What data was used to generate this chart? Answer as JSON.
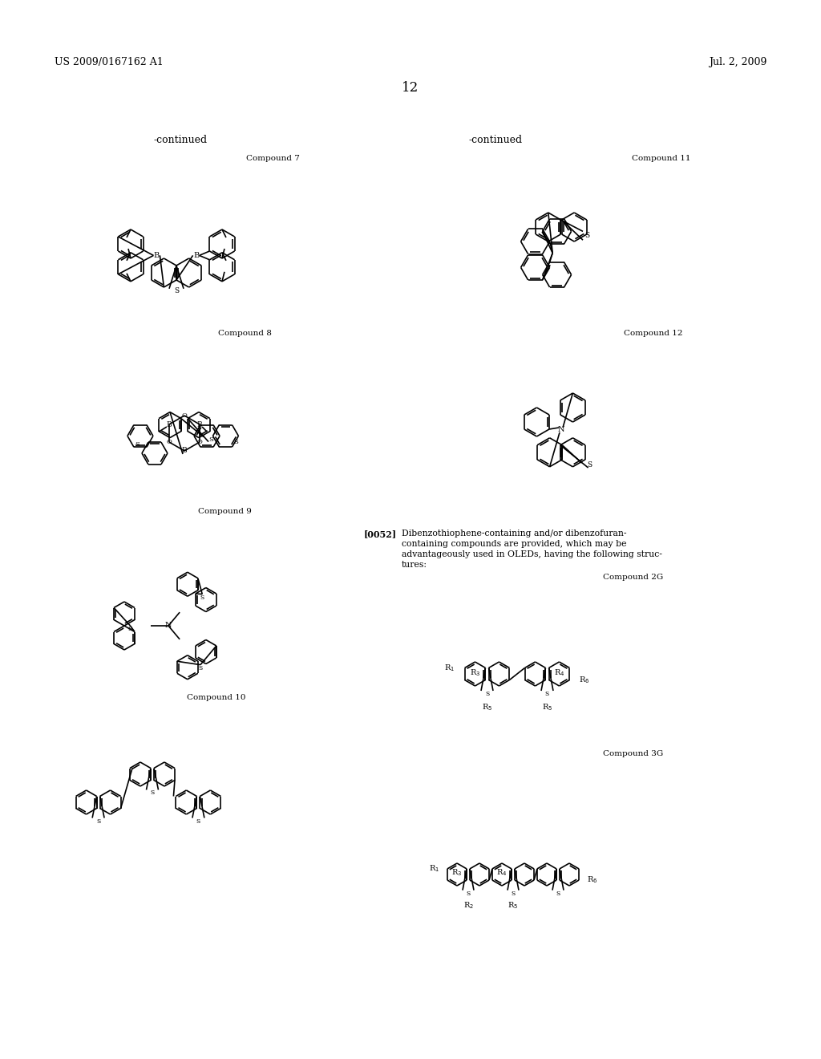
{
  "background_color": "#ffffff",
  "page_number": "12",
  "header_left": "US 2009/0167162 A1",
  "header_right": "Jul. 2, 2009",
  "continued_left": "-continued",
  "continued_right": "-continued",
  "compound_labels": [
    "Compound 7",
    "Compound 8",
    "Compound 9",
    "Compound 10",
    "Compound 11",
    "Compound 12",
    "Compound 2G",
    "Compound 3G"
  ],
  "paragraph_label": "[0052]",
  "paragraph_text": "Dibenzothiophene-containing and/or dibenzofuran-containing compounds are provided, which may be advantageously used in OLEDs, having the following structures:",
  "font_size_header": 9,
  "font_size_label": 7.5,
  "font_size_page": 12,
  "font_size_continued": 9,
  "font_size_paragraph": 8
}
